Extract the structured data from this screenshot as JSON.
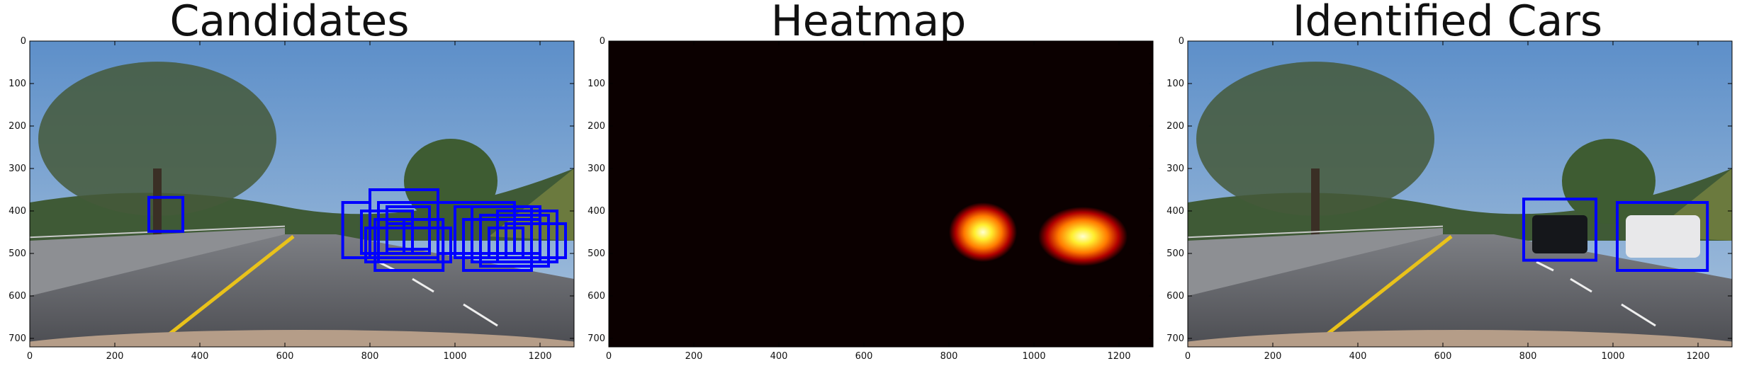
{
  "figure": {
    "panels": [
      {
        "title": "Candidates"
      },
      {
        "title": "Heatmap"
      },
      {
        "title": "Identified Cars"
      }
    ]
  },
  "chart_data": [
    {
      "type": "image",
      "title": "Candidates",
      "xlim": [
        0,
        1280
      ],
      "ylim": [
        720,
        0
      ],
      "xticks": [
        0,
        200,
        400,
        600,
        800,
        1000,
        1200
      ],
      "yticks": [
        0,
        100,
        200,
        300,
        400,
        500,
        600,
        700
      ],
      "box_color": "#0000ff",
      "boxes": [
        {
          "x0": 280,
          "y0": 368,
          "x1": 360,
          "y1": 448
        },
        {
          "x0": 736,
          "y0": 380,
          "x1": 800,
          "y1": 510
        },
        {
          "x0": 800,
          "y0": 350,
          "x1": 960,
          "y1": 510
        },
        {
          "x0": 820,
          "y0": 380,
          "x1": 960,
          "y1": 520
        },
        {
          "x0": 780,
          "y0": 400,
          "x1": 900,
          "y1": 500
        },
        {
          "x0": 840,
          "y0": 390,
          "x1": 940,
          "y1": 490
        },
        {
          "x0": 812,
          "y0": 420,
          "x1": 972,
          "y1": 540
        },
        {
          "x0": 840,
          "y0": 430,
          "x1": 900,
          "y1": 500
        },
        {
          "x0": 880,
          "y0": 420,
          "x1": 940,
          "y1": 500
        },
        {
          "x0": 790,
          "y0": 440,
          "x1": 990,
          "y1": 520
        },
        {
          "x0": 960,
          "y0": 380,
          "x1": 1140,
          "y1": 500
        },
        {
          "x0": 1000,
          "y0": 390,
          "x1": 1180,
          "y1": 510
        },
        {
          "x0": 1040,
          "y0": 390,
          "x1": 1200,
          "y1": 520
        },
        {
          "x0": 1020,
          "y0": 420,
          "x1": 1180,
          "y1": 540
        },
        {
          "x0": 1060,
          "y0": 410,
          "x1": 1220,
          "y1": 530
        },
        {
          "x0": 1100,
          "y0": 400,
          "x1": 1240,
          "y1": 520
        },
        {
          "x0": 1120,
          "y0": 430,
          "x1": 1260,
          "y1": 510
        },
        {
          "x0": 1080,
          "y0": 440,
          "x1": 1160,
          "y1": 510
        },
        {
          "x0": 1140,
          "y0": 420,
          "x1": 1200,
          "y1": 500
        }
      ]
    },
    {
      "type": "heatmap",
      "title": "Heatmap",
      "xlim": [
        0,
        1280
      ],
      "ylim": [
        720,
        0
      ],
      "xticks": [
        0,
        200,
        400,
        600,
        800,
        1000,
        1200
      ],
      "yticks": [
        0,
        100,
        200,
        300,
        400,
        500,
        600,
        700
      ],
      "colormap": "hot",
      "background_color": "#0b0000",
      "hot_regions": [
        {
          "x0": 800,
          "y0": 380,
          "x1": 960,
          "y1": 520,
          "peak_x": 880,
          "peak_y": 450
        },
        {
          "x0": 1010,
          "y0": 390,
          "x1": 1220,
          "y1": 530,
          "peak_x": 1120,
          "peak_y": 460
        }
      ]
    },
    {
      "type": "image",
      "title": "Identified Cars",
      "xlim": [
        0,
        1280
      ],
      "ylim": [
        720,
        0
      ],
      "xticks": [
        0,
        200,
        400,
        600,
        800,
        1000,
        1200
      ],
      "yticks": [
        0,
        100,
        200,
        300,
        400,
        500,
        600,
        700
      ],
      "box_color": "#0000ff",
      "boxes": [
        {
          "x0": 790,
          "y0": 372,
          "x1": 960,
          "y1": 516
        },
        {
          "x0": 1010,
          "y0": 380,
          "x1": 1222,
          "y1": 540
        }
      ]
    }
  ]
}
